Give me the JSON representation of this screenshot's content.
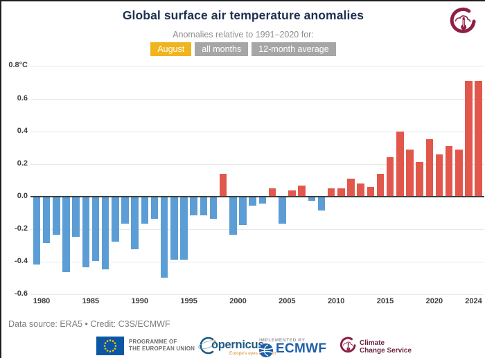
{
  "header": {
    "title": "Global surface air temperature anomalies",
    "subtitle": "Anomalies relative to 1991–2020 for:",
    "tabs": [
      {
        "label": "August",
        "active": true,
        "color": "#f0b41c"
      },
      {
        "label": "all months",
        "active": false,
        "color": "#a6a6a6"
      },
      {
        "label": "12-month average",
        "active": false,
        "color": "#a6a6a6"
      }
    ]
  },
  "chart_data": {
    "type": "bar",
    "title": "Global surface air temperature anomalies",
    "subtitle": "Anomalies relative to 1991–2020 for: August",
    "unit": "°C",
    "x": [
      1979,
      1980,
      1981,
      1982,
      1983,
      1984,
      1985,
      1986,
      1987,
      1988,
      1989,
      1990,
      1991,
      1992,
      1993,
      1994,
      1995,
      1996,
      1997,
      1998,
      1999,
      2000,
      2001,
      2002,
      2003,
      2004,
      2005,
      2006,
      2007,
      2008,
      2009,
      2010,
      2011,
      2012,
      2013,
      2014,
      2015,
      2016,
      2017,
      2018,
      2019,
      2020,
      2021,
      2022,
      2023,
      2024
    ],
    "values": [
      -0.41,
      -0.28,
      -0.23,
      -0.46,
      -0.24,
      -0.43,
      -0.39,
      -0.44,
      -0.27,
      -0.16,
      -0.32,
      -0.16,
      -0.13,
      -0.49,
      -0.38,
      -0.38,
      -0.11,
      -0.11,
      -0.13,
      0.14,
      -0.23,
      -0.17,
      -0.05,
      -0.04,
      0.05,
      -0.16,
      0.04,
      0.07,
      -0.02,
      -0.08,
      0.05,
      0.05,
      0.11,
      0.08,
      0.06,
      0.14,
      0.24,
      0.4,
      0.29,
      0.21,
      0.35,
      0.26,
      0.31,
      0.29,
      0.71,
      0.71
    ],
    "ylim": [
      -0.6,
      0.8
    ],
    "yticks": [
      0.8,
      0.6,
      0.4,
      0.2,
      0,
      -0.2,
      -0.4,
      -0.6
    ],
    "ytick_labels": [
      "0.8°C",
      "0.6",
      "0.4",
      "0.2",
      "0.0",
      "-0.2",
      "-0.4",
      "-0.6"
    ],
    "xticks": [
      1980,
      1985,
      1990,
      1995,
      2000,
      2005,
      2010,
      2015,
      2020,
      2024
    ],
    "grid": true,
    "legend": "none",
    "colors": {
      "positive": "#e2574c",
      "negative": "#5b9dd4"
    }
  },
  "footer": {
    "credit": "Data source: ERA5 • Credit: C3S/ECMWF",
    "logos": {
      "eu": {
        "line1": "PROGRAMME OF",
        "line2": "THE EUROPEAN UNION"
      },
      "copernicus": {
        "name": "opernicus",
        "tagline": "Europe's eyes on Earth"
      },
      "ecmwf": {
        "implemented_by": "IMPLEMENTED BY",
        "name": "ECMWF"
      },
      "c3s": {
        "line1": "Climate",
        "line2": "Change Service"
      }
    }
  }
}
